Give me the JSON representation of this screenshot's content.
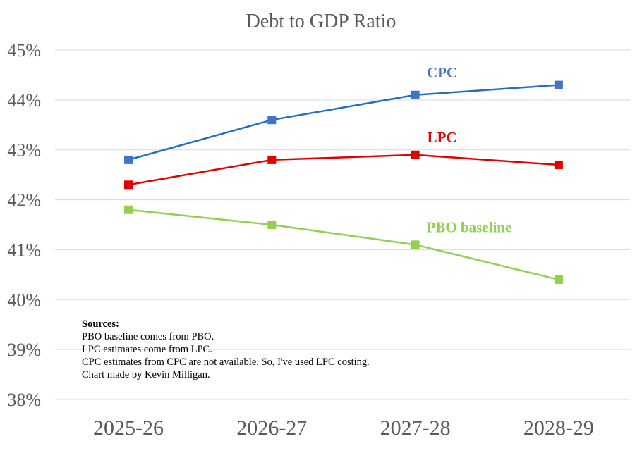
{
  "chart_data": {
    "type": "line",
    "title": "Debt to GDP Ratio",
    "categories": [
      "2025-26",
      "2026-27",
      "2027-28",
      "2028-29"
    ],
    "ylim": [
      38,
      45
    ],
    "yticks": [
      38,
      39,
      40,
      41,
      42,
      43,
      44,
      45
    ],
    "ytick_labels": [
      "38%",
      "39%",
      "40%",
      "41%",
      "42%",
      "43%",
      "44%",
      "45%"
    ],
    "grid": true,
    "legend": "none",
    "series": [
      {
        "name": "CPC",
        "values": [
          42.8,
          43.6,
          44.1,
          44.3
        ],
        "line_color": "#1F6FC2",
        "marker_color": "#4472C4",
        "label_color": "#4472C4",
        "label_anchor": {
          "category": "2027-28",
          "value": 44.55
        }
      },
      {
        "name": "LPC",
        "values": [
          42.3,
          42.8,
          42.9,
          42.7
        ],
        "line_color": "#E50000",
        "marker_color": "#E50000",
        "label_color": "#E50000",
        "label_anchor": {
          "category": "2027-28",
          "value": 43.25
        }
      },
      {
        "name": "PBO baseline",
        "values": [
          41.8,
          41.5,
          41.1,
          40.4
        ],
        "line_color": "#92D050",
        "marker_color": "#92D050",
        "label_color": "#92D050",
        "label_anchor": {
          "category": "2028-29",
          "value": 41.45
        }
      }
    ],
    "annotation": {
      "heading": "Sources:",
      "lines": [
        "PBO baseline  comes from  PBO.",
        "LPC estimates  come from  LPC.",
        "CPC estimates  from  CPC are not available.  So, I've used LPC costing.",
        "Chart made by Kevin Milligan."
      ]
    }
  }
}
